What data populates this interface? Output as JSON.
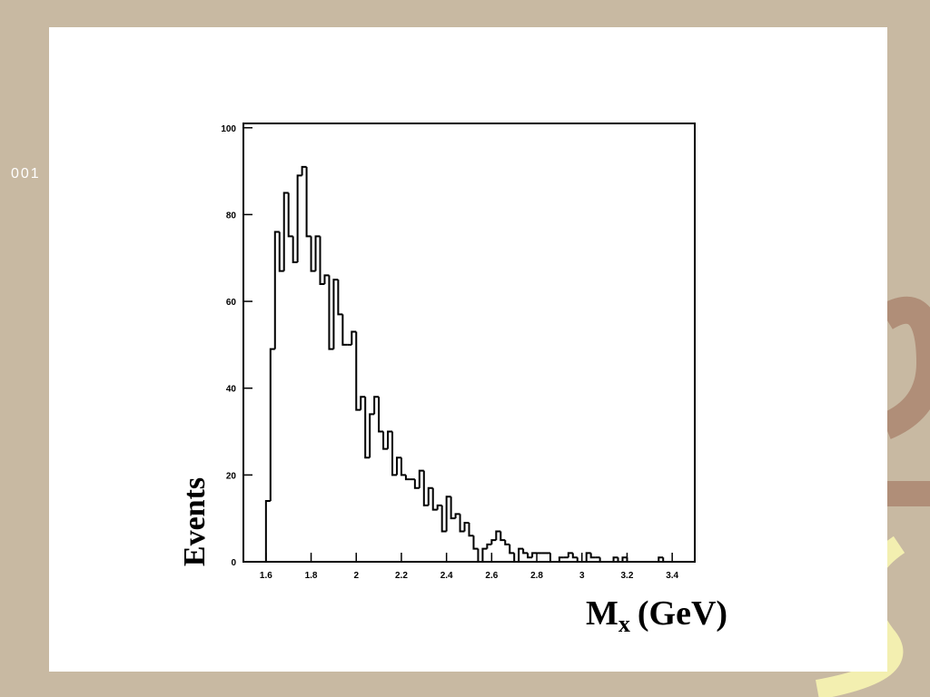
{
  "side_text": "001",
  "chart_data": {
    "type": "histogram",
    "y_label": "Events",
    "x_label": {
      "main": "M",
      "sub": "x",
      "unit": "(GeV)"
    },
    "bins": [
      1.6,
      1.62,
      1.64,
      1.66,
      1.68,
      1.7,
      1.72,
      1.74,
      1.76,
      1.78,
      1.8,
      1.82,
      1.84,
      1.86,
      1.88,
      1.9,
      1.92,
      1.94,
      1.96,
      1.98,
      2.0,
      2.02,
      2.04,
      2.06,
      2.08,
      2.1,
      2.12,
      2.14,
      2.16,
      2.18,
      2.2,
      2.22,
      2.24,
      2.26,
      2.28,
      2.3,
      2.32,
      2.34,
      2.36,
      2.38,
      2.4,
      2.42,
      2.44,
      2.46,
      2.48,
      2.5,
      2.52,
      2.54,
      2.56,
      2.58,
      2.6,
      2.62,
      2.64,
      2.66,
      2.68,
      2.7,
      2.72,
      2.74,
      2.76,
      2.78,
      2.8,
      2.82,
      2.84,
      2.86,
      2.88,
      2.9,
      2.92,
      2.94,
      2.96,
      2.98,
      3.0,
      3.02,
      3.04,
      3.06,
      3.08,
      3.1,
      3.12,
      3.14,
      3.16,
      3.18,
      3.2,
      3.22,
      3.24,
      3.26,
      3.28,
      3.3,
      3.32,
      3.34,
      3.36,
      3.38,
      3.4
    ],
    "values": [
      14,
      49,
      76,
      67,
      85,
      75,
      69,
      89,
      91,
      75,
      67,
      75,
      64,
      66,
      49,
      65,
      57,
      50,
      50,
      53,
      35,
      38,
      24,
      34,
      38,
      30,
      26,
      30,
      20,
      24,
      20,
      19,
      19,
      17,
      21,
      13,
      17,
      12,
      13,
      7,
      15,
      10,
      11,
      7,
      9,
      6,
      3,
      0,
      3,
      4,
      5,
      7,
      5,
      4,
      2,
      0,
      3,
      2,
      1,
      2,
      2,
      2,
      2,
      0,
      0,
      1,
      1,
      2,
      1,
      0,
      0,
      2,
      1,
      1,
      0,
      0,
      0,
      1,
      0,
      1,
      0,
      0,
      0,
      0,
      0,
      0,
      0,
      1,
      0,
      0
    ],
    "color": "#000000",
    "xlim": [
      1.5,
      3.5
    ],
    "ylim": [
      0,
      101
    ],
    "xticks": [
      1.6,
      1.8,
      2,
      2.2,
      2.4,
      2.6,
      2.8,
      3,
      3.2,
      3.4
    ],
    "yticks": [
      0,
      20,
      40,
      60,
      80,
      100
    ]
  }
}
